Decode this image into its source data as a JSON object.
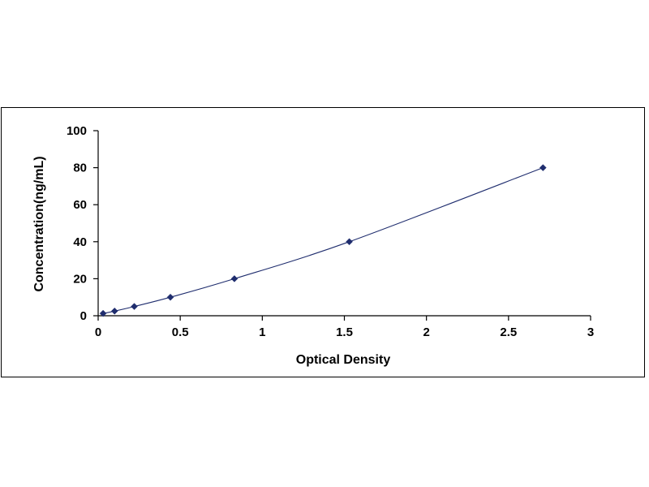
{
  "chart_data": {
    "type": "scatter",
    "title": "",
    "xlabel": "Optical Density",
    "ylabel": "Concentration(ng/mL)",
    "xlim": [
      0,
      3
    ],
    "ylim": [
      0,
      100
    ],
    "xticks": [
      0,
      0.5,
      1,
      1.5,
      2,
      2.5,
      3
    ],
    "yticks": [
      0,
      20,
      40,
      60,
      80,
      100
    ],
    "xtick_labels": [
      "0",
      "0.5",
      "1",
      "1.5",
      "2",
      "2.5",
      "3"
    ],
    "ytick_labels": [
      "0",
      "20",
      "40",
      "60",
      "80",
      "100"
    ],
    "grid": false,
    "legend": "none",
    "marker_color": "#1f2d6e",
    "line_color": "#1f2d6e",
    "trendline": true,
    "series": [
      {
        "x": [
          0.03,
          0.1,
          0.22,
          0.44,
          0.83,
          1.53,
          2.71
        ],
        "y": [
          1.25,
          2.5,
          5,
          10,
          20,
          40,
          80
        ]
      }
    ]
  }
}
